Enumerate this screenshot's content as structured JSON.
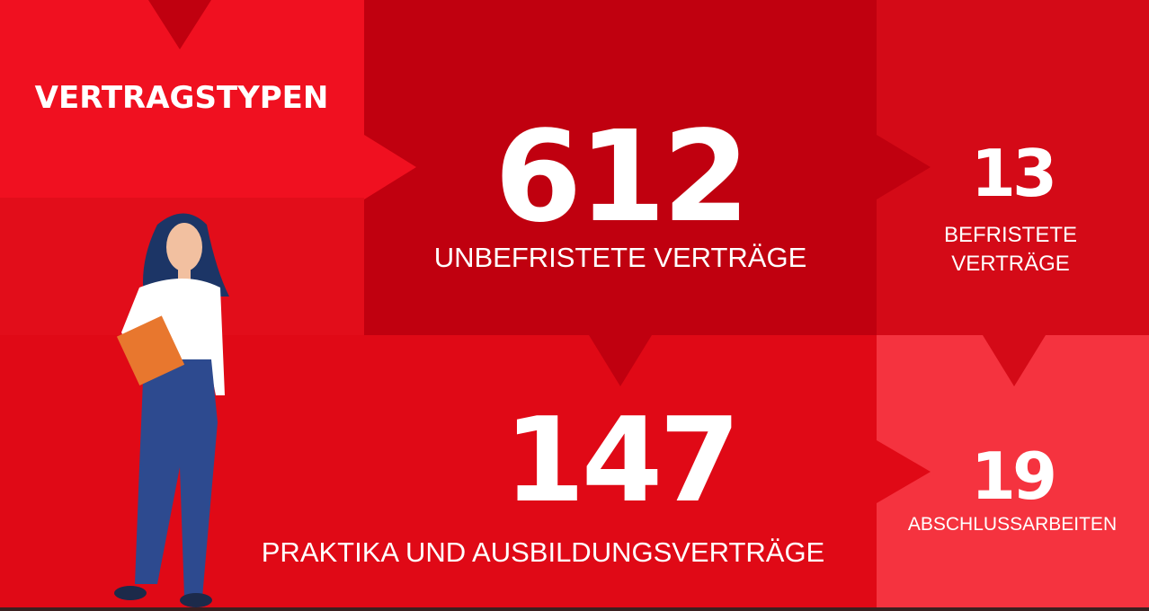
{
  "header": {
    "title": "VERTRAGSTYPEN"
  },
  "tiles": [
    {
      "number": "612",
      "label_lines": [
        "UNBEFRISTETE VERTRÄGE"
      ]
    },
    {
      "number": "13",
      "label_lines": [
        "BEFRISTETE",
        "VERTRÄGE"
      ]
    },
    {
      "number": "147",
      "label_lines": [
        "PRAKTIKA UND AUSBILDUNGSVERTRÄGE"
      ]
    },
    {
      "number": "19",
      "label_lines": [
        "ABSCHLUSSARBEITEN"
      ]
    }
  ]
}
